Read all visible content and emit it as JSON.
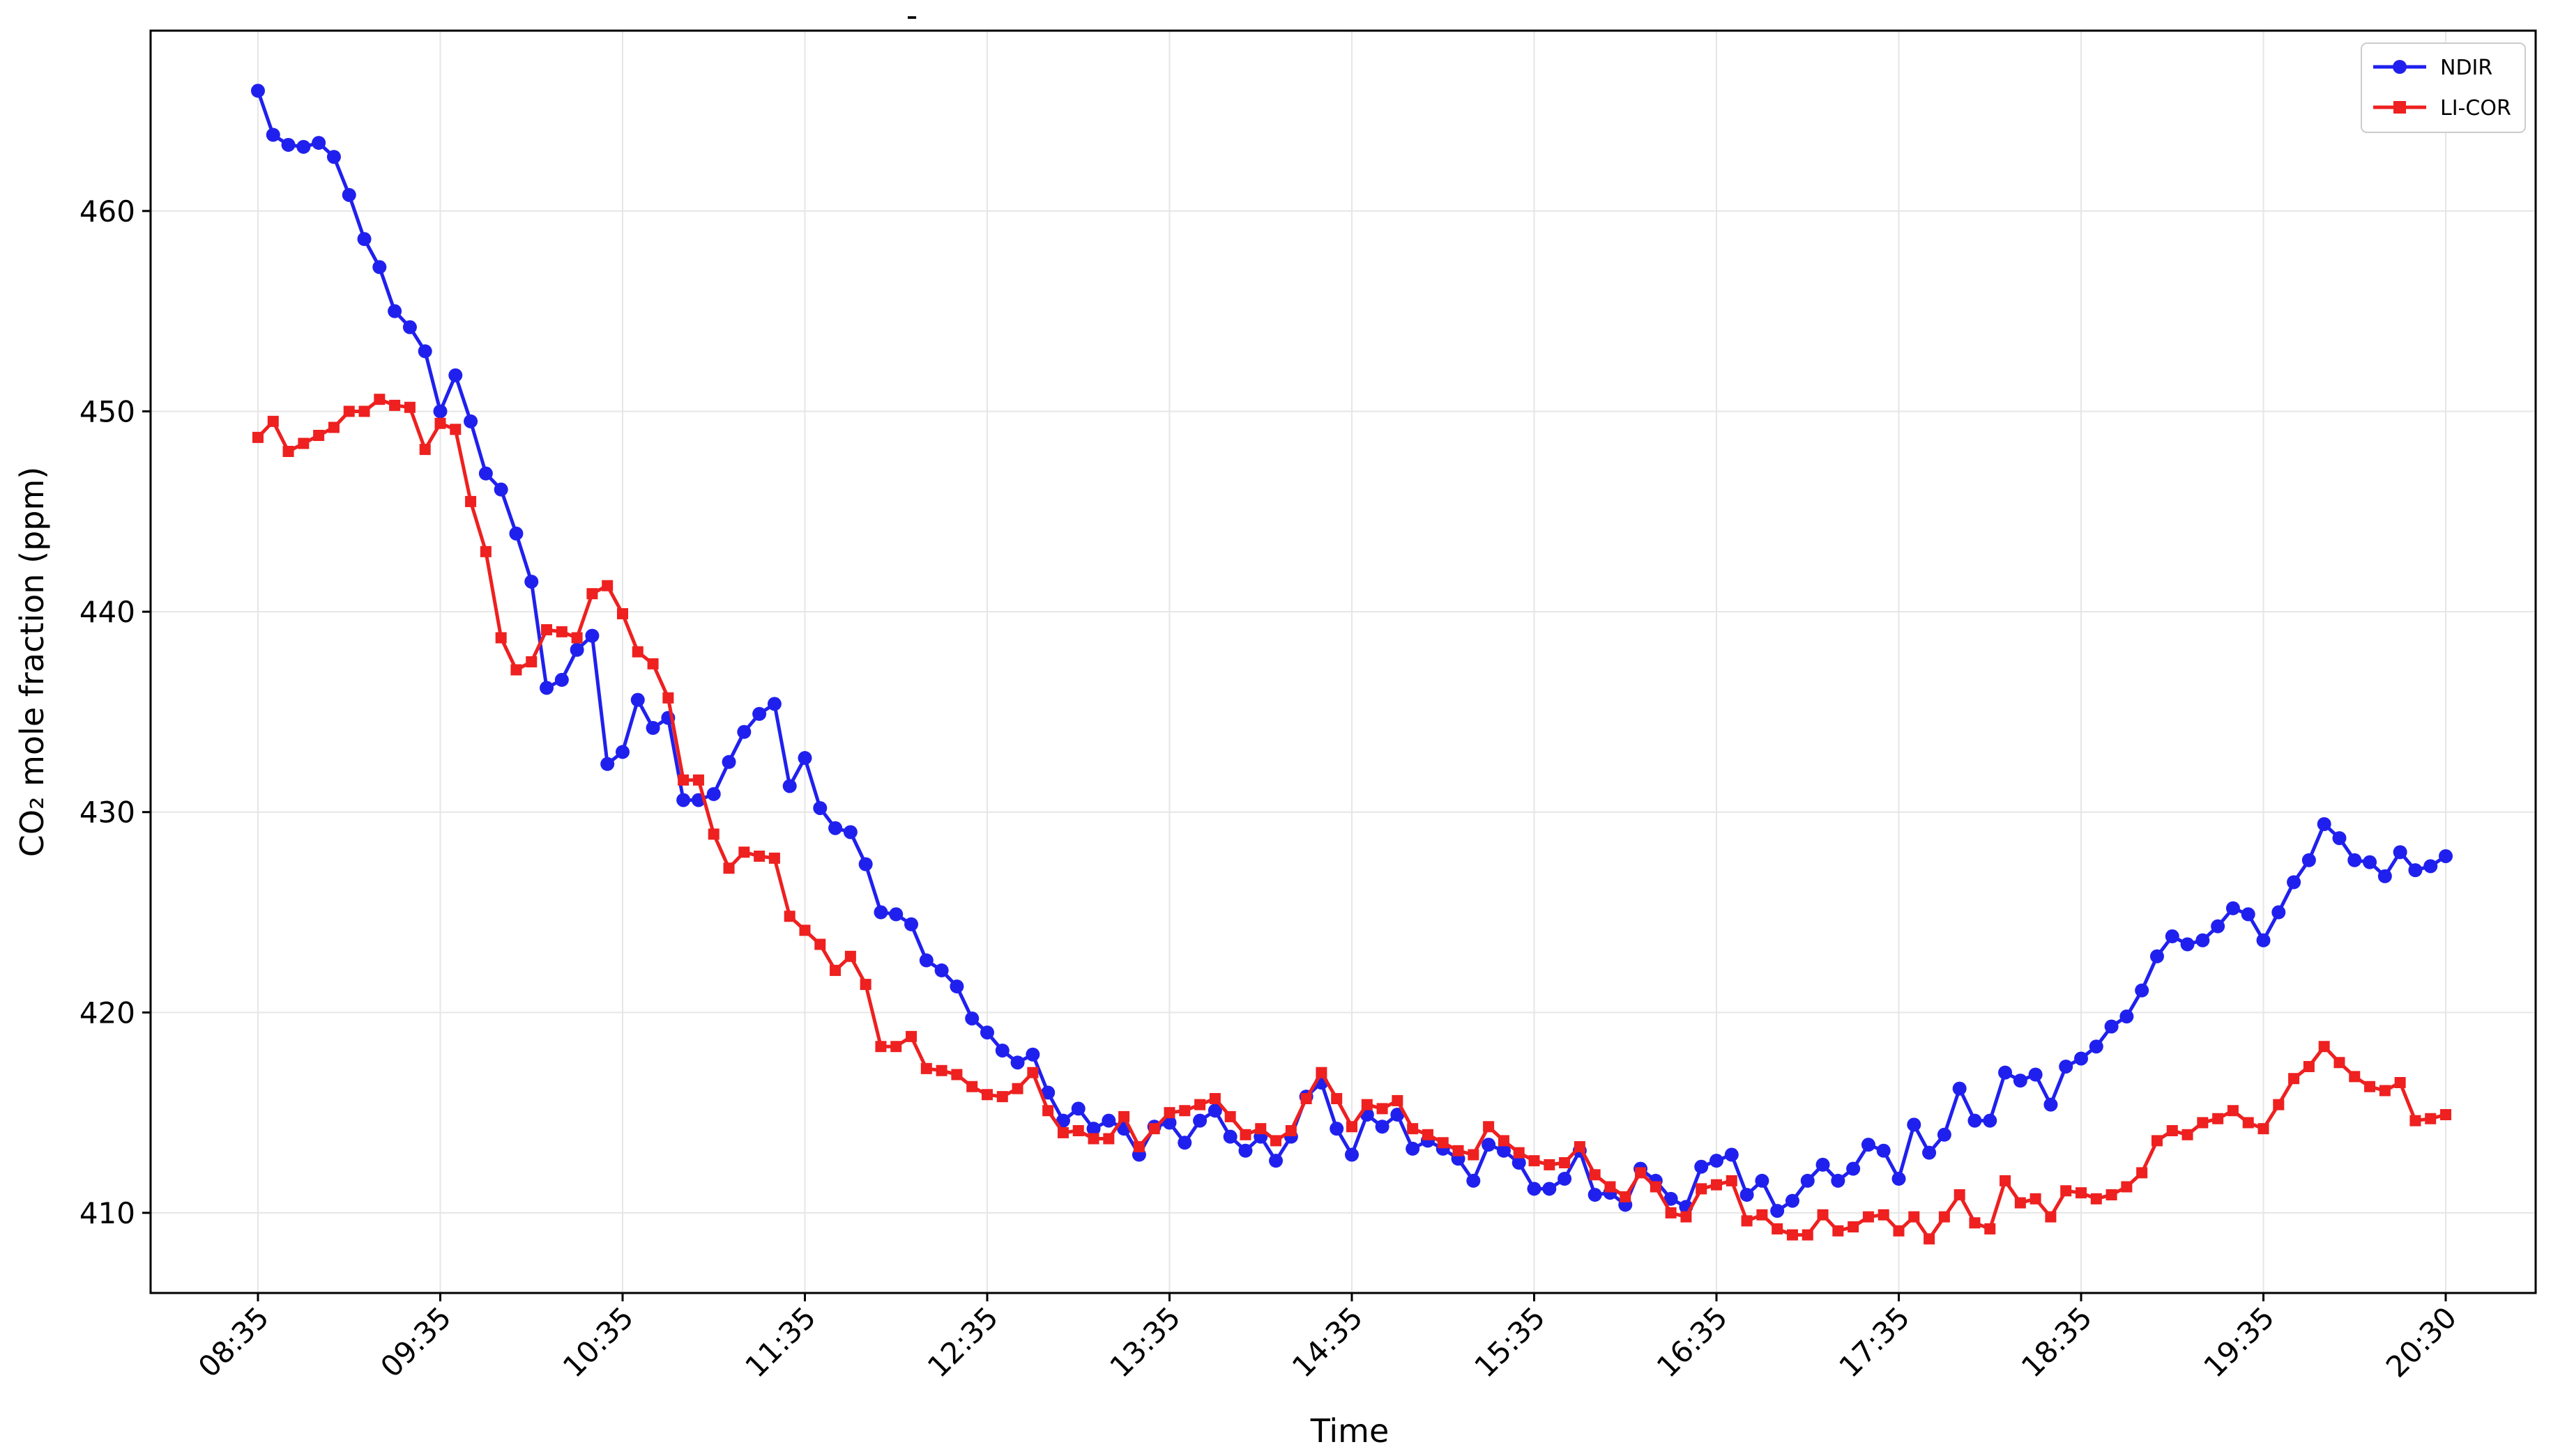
{
  "chart_data": {
    "type": "line",
    "title": "-",
    "xlabel": "Time",
    "ylabel": "CO₂ mole fraction (ppm)",
    "x_ticks": [
      "08:35",
      "09:35",
      "10:35",
      "11:35",
      "12:35",
      "13:35",
      "14:35",
      "15:35",
      "16:35",
      "17:35",
      "18:35",
      "19:35",
      "20:30"
    ],
    "y_ticks": [
      410,
      420,
      430,
      440,
      450,
      460
    ],
    "ylim": [
      406,
      469
    ],
    "grid": true,
    "legend_position": "top-right",
    "colors": {
      "NDIR": "#2020ee",
      "LI-COR": "#ee2020"
    },
    "series": [
      {
        "name": "NDIR",
        "marker": "circle",
        "values": [
          466.0,
          463.8,
          463.3,
          463.2,
          463.4,
          462.7,
          460.8,
          458.6,
          457.2,
          455.0,
          454.2,
          453.0,
          450.0,
          451.8,
          449.5,
          446.9,
          446.1,
          443.9,
          441.5,
          436.2,
          436.6,
          438.1,
          438.8,
          432.4,
          433.0,
          435.6,
          434.2,
          434.7,
          430.6,
          430.6,
          430.9,
          432.5,
          434.0,
          434.9,
          435.4,
          431.3,
          432.7,
          430.2,
          429.2,
          429.0,
          427.4,
          425.0,
          424.9,
          424.4,
          422.6,
          422.1,
          421.3,
          419.7,
          419.0,
          418.1,
          417.5,
          417.9,
          416.0,
          414.6,
          415.2,
          414.2,
          414.6,
          414.2,
          412.9,
          414.3,
          414.5,
          413.5,
          414.6,
          415.1,
          413.8,
          413.1,
          413.8,
          412.6,
          413.8,
          415.8,
          416.5,
          414.2,
          412.9,
          414.9,
          414.3,
          414.9,
          413.2,
          413.6,
          413.2,
          412.7,
          411.6,
          413.4,
          413.1,
          412.5,
          411.2,
          411.2,
          411.7,
          413.1,
          410.9,
          411.0,
          410.4,
          412.2,
          411.6,
          410.7,
          410.3,
          412.3,
          412.6,
          412.9,
          410.9,
          411.6,
          410.1,
          410.6,
          411.6,
          412.4,
          411.6,
          412.2,
          413.4,
          413.1,
          411.7,
          414.4,
          413.0,
          413.9,
          416.2,
          414.6,
          414.6,
          417.0,
          416.6,
          416.9,
          415.4,
          417.3,
          417.7,
          418.3,
          419.3,
          419.8,
          421.1,
          422.8,
          423.8,
          423.4,
          423.6,
          424.3,
          425.2,
          424.9,
          423.6,
          425.0,
          426.5,
          427.6,
          429.4,
          428.7,
          427.6,
          427.5,
          426.8,
          428.0,
          427.1,
          427.3,
          427.8
        ]
      },
      {
        "name": "LI-COR",
        "marker": "square",
        "values": [
          448.7,
          449.5,
          448.0,
          448.4,
          448.8,
          449.2,
          450.0,
          450.0,
          450.6,
          450.3,
          450.2,
          448.1,
          449.4,
          449.1,
          445.5,
          443.0,
          438.7,
          437.1,
          437.5,
          439.1,
          439.0,
          438.7,
          440.9,
          441.3,
          439.9,
          438.0,
          437.4,
          435.7,
          431.6,
          431.6,
          428.9,
          427.2,
          428.0,
          427.8,
          427.7,
          424.8,
          424.1,
          423.4,
          422.1,
          422.8,
          421.4,
          418.3,
          418.3,
          418.8,
          417.2,
          417.1,
          416.9,
          416.3,
          415.9,
          415.8,
          416.2,
          417.0,
          415.1,
          414.0,
          414.1,
          413.7,
          413.7,
          414.8,
          413.3,
          414.2,
          415.0,
          415.1,
          415.4,
          415.7,
          414.8,
          413.9,
          414.2,
          413.6,
          414.1,
          415.7,
          417.0,
          415.7,
          414.3,
          415.4,
          415.2,
          415.6,
          414.2,
          413.9,
          413.5,
          413.1,
          412.9,
          414.3,
          413.6,
          413.0,
          412.6,
          412.4,
          412.5,
          413.3,
          411.9,
          411.3,
          410.8,
          412.0,
          411.3,
          410.0,
          409.8,
          411.2,
          411.4,
          411.6,
          409.6,
          409.9,
          409.2,
          408.9,
          408.9,
          409.9,
          409.1,
          409.3,
          409.8,
          409.9,
          409.1,
          409.8,
          408.7,
          409.8,
          410.9,
          409.5,
          409.2,
          411.6,
          410.5,
          410.7,
          409.8,
          411.1,
          411.0,
          410.7,
          410.9,
          411.3,
          412.0,
          413.6,
          414.1,
          413.9,
          414.5,
          414.7,
          415.1,
          414.5,
          414.2,
          415.4,
          416.7,
          417.3,
          418.3,
          417.5,
          416.8,
          416.3,
          416.1,
          416.5,
          414.6,
          414.7,
          414.9
        ]
      }
    ]
  }
}
